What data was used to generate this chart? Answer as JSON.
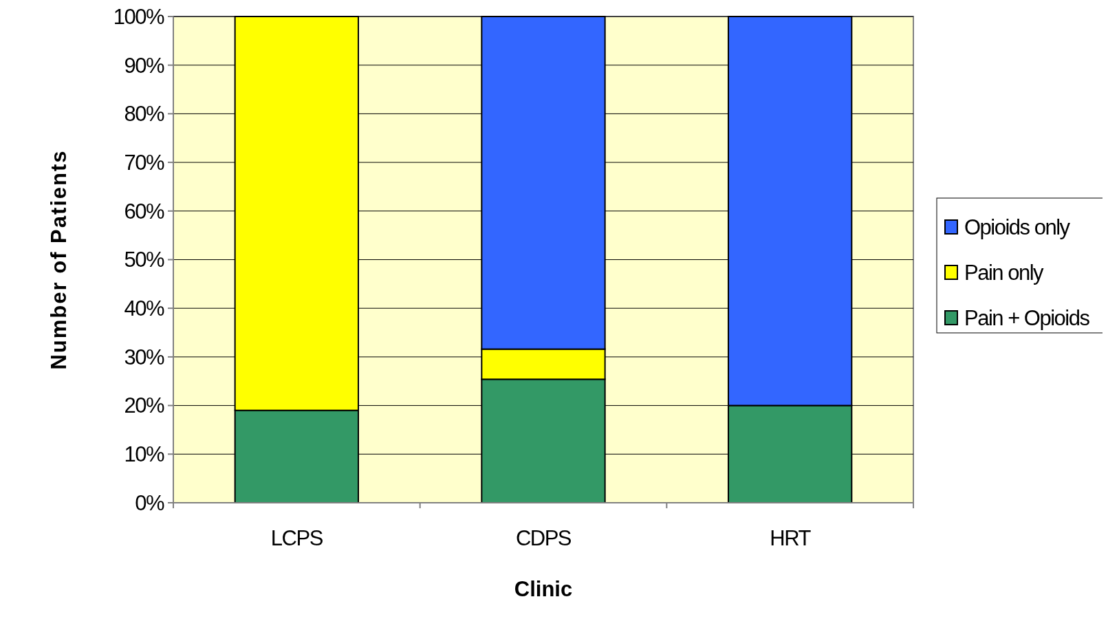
{
  "chart_data": {
    "type": "bar",
    "stacked": true,
    "xlabel": "Clinic",
    "ylabel": "Number of Patients",
    "categories": [
      "LCPS",
      "CDPS",
      "HRT"
    ],
    "series": [
      {
        "name": "Pain + Opioids",
        "color": "#339966",
        "values": [
          19,
          25.4,
          20
        ]
      },
      {
        "name": "Pain only",
        "color": "#ffff00",
        "values": [
          81,
          6.2,
          0
        ]
      },
      {
        "name": "Opioids only",
        "color": "#3366ff",
        "values": [
          0,
          68.4,
          80
        ]
      }
    ],
    "ylim": [
      0,
      100
    ],
    "yticks": [
      {
        "value": 0,
        "label": "0%"
      },
      {
        "value": 10,
        "label": "10%"
      },
      {
        "value": 20,
        "label": "20%"
      },
      {
        "value": 30,
        "label": "30%"
      },
      {
        "value": 40,
        "label": "40%"
      },
      {
        "value": 50,
        "label": "50%"
      },
      {
        "value": 60,
        "label": "60%"
      },
      {
        "value": 70,
        "label": "70%"
      },
      {
        "value": 80,
        "label": "80%"
      },
      {
        "value": 90,
        "label": "90%"
      },
      {
        "value": 100,
        "label": "100%"
      }
    ],
    "grid": "y",
    "legend": "right"
  }
}
